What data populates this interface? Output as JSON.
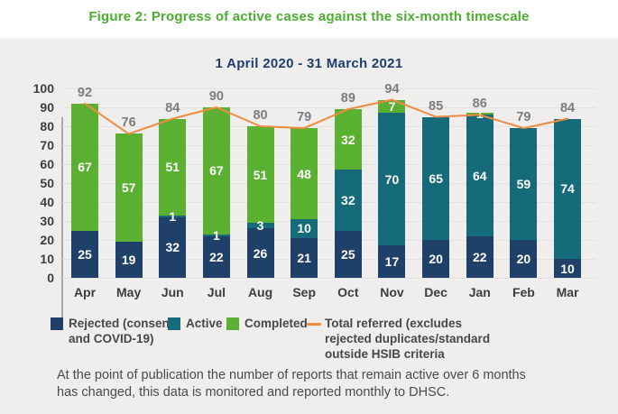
{
  "title": "Figure 2: Progress of active cases against the six-month timescale",
  "title_color": "#4bae2f",
  "subtitle_color": "#1c3e6e",
  "footer": {
    "line1": "At the point of publication the number of reports that remain active over 6 months",
    "line2": "has changed, this data is monitored and reported monthly to DHSC."
  },
  "chart_data": {
    "type": "bar",
    "stacked": true,
    "title": "1 April 2020 - 31 March 2021",
    "categories": [
      "Apr",
      "May",
      "Jun",
      "Jul",
      "Aug",
      "Sep",
      "Oct",
      "Nov",
      "Dec",
      "Jan",
      "Feb",
      "Mar"
    ],
    "series": [
      {
        "name": "Rejected (consent and COVID-19)",
        "color": "#1f4169",
        "values": [
          25,
          19,
          32,
          22,
          26,
          21,
          25,
          17,
          20,
          22,
          20,
          10
        ]
      },
      {
        "name": "Active",
        "color": "#166b7b",
        "values": [
          0,
          0,
          1,
          1,
          3,
          10,
          32,
          70,
          65,
          64,
          59,
          74
        ]
      },
      {
        "name": "Completed",
        "color": "#5ab031",
        "values": [
          67,
          57,
          51,
          67,
          51,
          48,
          32,
          7,
          0,
          1,
          0,
          0
        ]
      }
    ],
    "line_series": {
      "name": "Total referred (excludes rejected duplicates/standard outside HSIB criteria",
      "color": "#ef8b41",
      "values": [
        92,
        76,
        84,
        90,
        80,
        79,
        89,
        94,
        85,
        86,
        79,
        84
      ]
    },
    "ylim": [
      0,
      100
    ],
    "yticks": [
      100,
      90,
      80,
      70,
      60,
      50,
      40,
      30,
      20,
      10,
      0
    ],
    "grid": true,
    "legend_position": "bottom"
  },
  "legend": {
    "items": [
      {
        "swatch": "square",
        "color": "#1f4169",
        "lines": [
          "Rejected (consent",
          "and COVID-19)"
        ],
        "x": 56
      },
      {
        "swatch": "square",
        "color": "#166b7b",
        "lines": [
          "Active"
        ],
        "x": 186
      },
      {
        "swatch": "square",
        "color": "#5ab031",
        "lines": [
          "Completed"
        ],
        "x": 251
      },
      {
        "swatch": "dash",
        "color": "#ef8b41",
        "lines": [
          "Total referred (excludes",
          "rejected duplicates/standard",
          "outside HSIB criteria"
        ],
        "x": 340
      }
    ]
  }
}
